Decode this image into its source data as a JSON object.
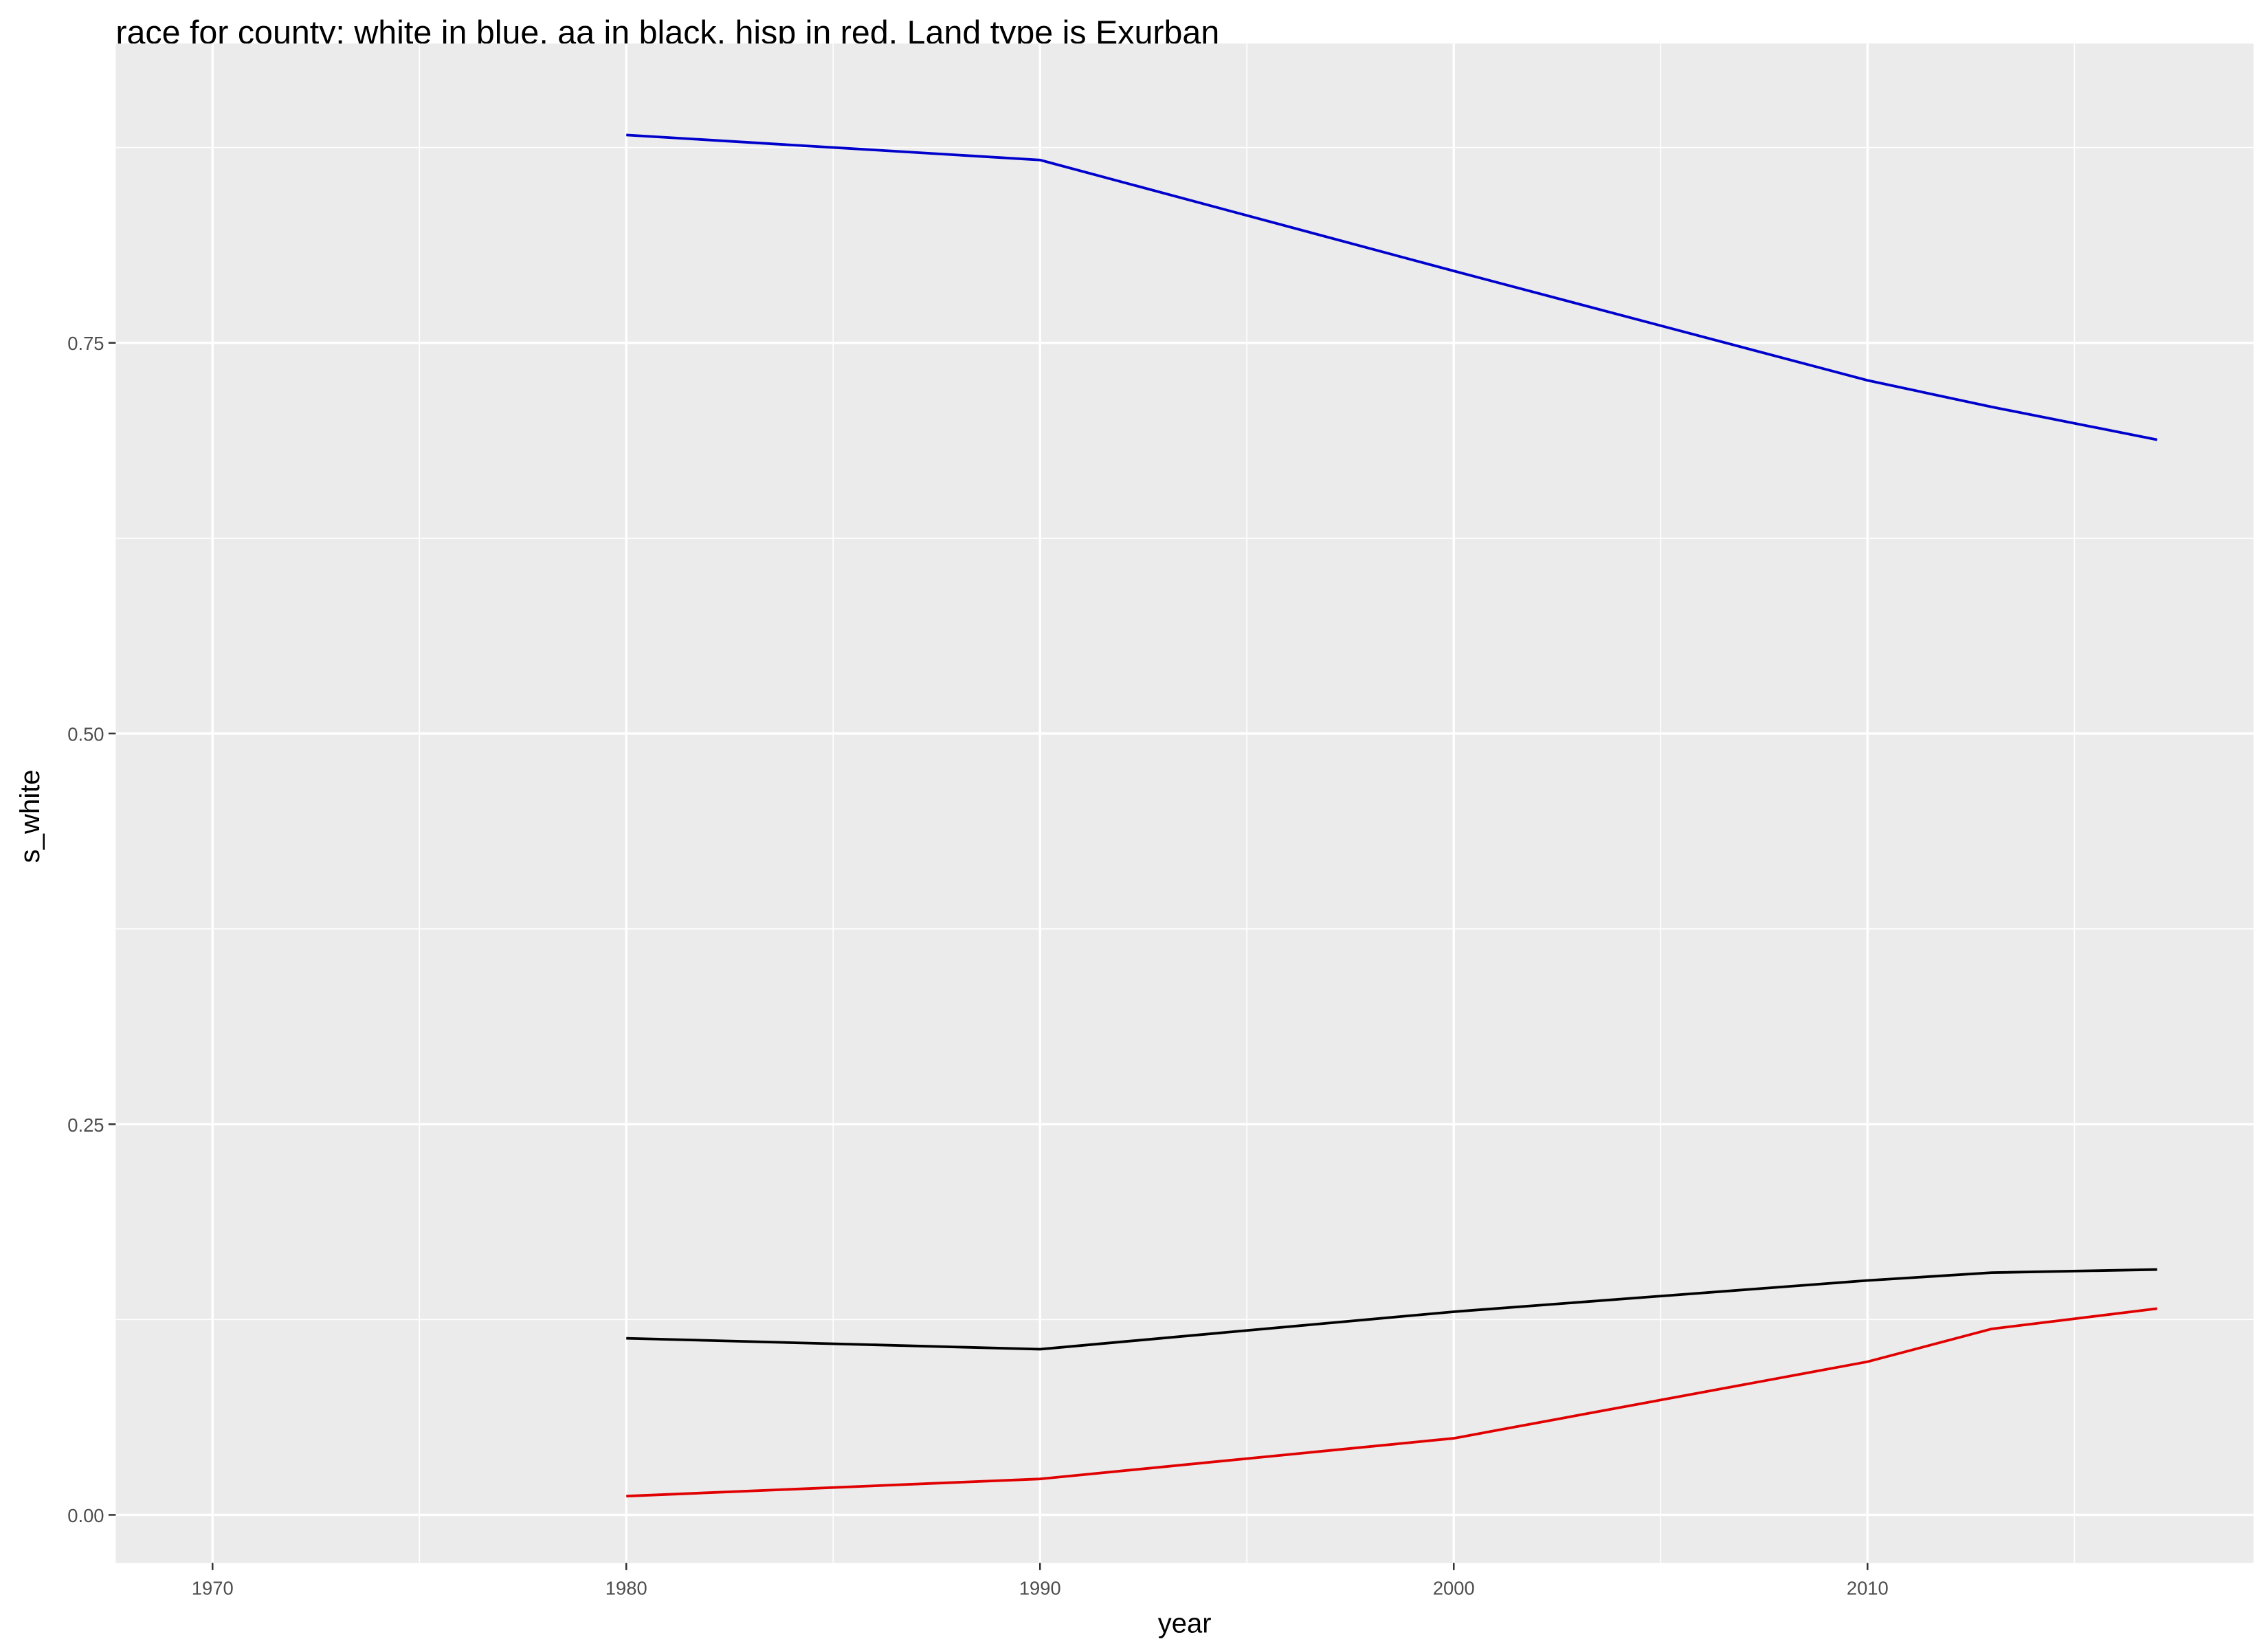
{
  "chart_data": {
    "type": "line",
    "title": "race for county: white in blue, aa in black, hisp in red. Land type is  Exurban",
    "x_label": "year",
    "y_label": "s_white",
    "x": [
      1980,
      1990,
      2000,
      2010,
      2013,
      2017
    ],
    "series": [
      {
        "color": "#0000cd",
        "values": [
          0.883,
          0.867,
          0.796,
          0.726,
          0.709,
          0.688
        ]
      },
      {
        "color": "#000000",
        "values": [
          0.113,
          0.106,
          0.13,
          0.15,
          0.155,
          0.157
        ]
      },
      {
        "color": "#e00000",
        "values": [
          0.012,
          0.023,
          0.049,
          0.098,
          0.119,
          0.132
        ]
      }
    ],
    "xlim": [
      1967.66,
      2019.33
    ],
    "ylim": [
      -0.0307,
      0.9415
    ],
    "xticks": [
      1970,
      1980,
      1990,
      2000,
      2010
    ],
    "yticks": [
      {
        "value": 0,
        "label": "0.00"
      },
      0.25,
      {
        "value": 0.5,
        "label": "0.50"
      },
      0.75
    ],
    "xticks_minor": [
      1975,
      1985,
      1995,
      2005,
      2015
    ],
    "yticks_minor": [
      0.125,
      0.375,
      0.625,
      0.875
    ],
    "grid": true,
    "panel_color": "#ebebeb"
  }
}
